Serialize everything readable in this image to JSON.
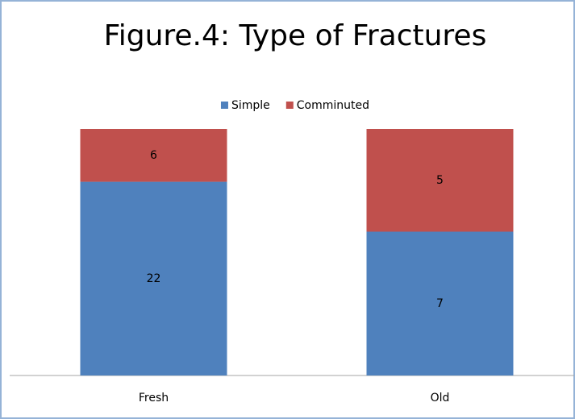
{
  "chart_data": {
    "type": "bar",
    "stacking": "percent",
    "title": "Figure.4: Type of Fractures",
    "categories": [
      "Fresh",
      "Old"
    ],
    "series": [
      {
        "name": "Simple",
        "color": "#4f81bd",
        "values": [
          22,
          7
        ]
      },
      {
        "name": "Comminuted",
        "color": "#c0504d",
        "values": [
          6,
          5
        ]
      }
    ],
    "legend": "top"
  }
}
